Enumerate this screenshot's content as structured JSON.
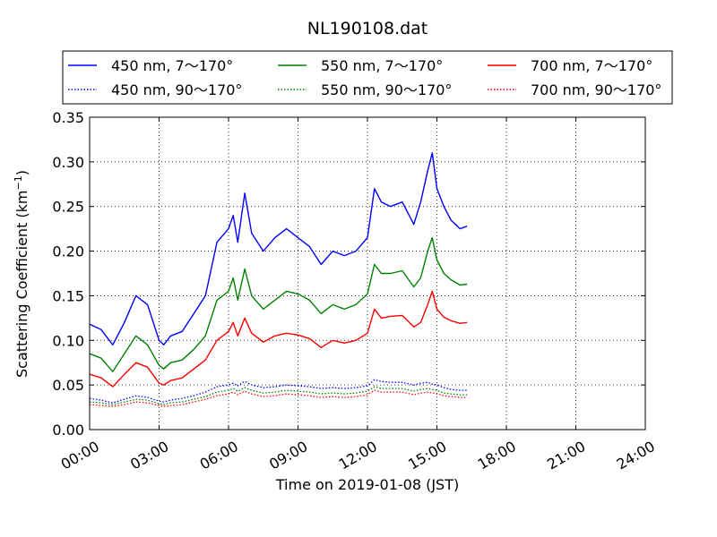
{
  "chart_data": {
    "type": "line",
    "title": "NL190108.dat",
    "xlabel": "Time on 2019-01-08 (JST)",
    "ylabel": "Scattering Coefficient (km",
    "ylabel_sup": "−1",
    "ylabel_end": ")",
    "xlim": [
      0,
      24
    ],
    "ylim": [
      0.0,
      0.35
    ],
    "x_ticks": [
      0,
      3,
      6,
      9,
      12,
      15,
      18,
      21,
      24
    ],
    "x_tick_labels": [
      "00:00",
      "03:00",
      "06:00",
      "09:00",
      "12:00",
      "15:00",
      "18:00",
      "21:00",
      "24:00"
    ],
    "y_ticks": [
      0.0,
      0.05,
      0.1,
      0.15,
      0.2,
      0.25,
      0.3,
      0.35
    ],
    "y_tick_labels": [
      "0.00",
      "0.05",
      "0.10",
      "0.15",
      "0.20",
      "0.25",
      "0.30",
      "0.35"
    ],
    "grid": true,
    "legend_position": "top, above plot, 3 columns",
    "x": [
      0.0,
      0.5,
      1.0,
      1.5,
      2.0,
      2.5,
      3.0,
      3.2,
      3.5,
      4.0,
      4.5,
      5.0,
      5.5,
      6.0,
      6.2,
      6.4,
      6.7,
      7.0,
      7.5,
      8.0,
      8.5,
      9.0,
      9.5,
      10.0,
      10.5,
      11.0,
      11.5,
      12.0,
      12.3,
      12.6,
      13.0,
      13.5,
      14.0,
      14.3,
      14.6,
      14.8,
      15.0,
      15.3,
      15.6,
      16.0,
      16.3
    ],
    "series": [
      {
        "name": "450 nm, 7～170°",
        "color": "#0000ff",
        "style": "solid",
        "values": [
          0.118,
          0.112,
          0.095,
          0.12,
          0.15,
          0.14,
          0.1,
          0.095,
          0.105,
          0.11,
          0.13,
          0.15,
          0.21,
          0.225,
          0.24,
          0.21,
          0.265,
          0.22,
          0.2,
          0.215,
          0.225,
          0.215,
          0.205,
          0.185,
          0.2,
          0.195,
          0.2,
          0.215,
          0.27,
          0.255,
          0.25,
          0.255,
          0.23,
          0.255,
          0.29,
          0.31,
          0.27,
          0.25,
          0.235,
          0.225,
          0.228
        ]
      },
      {
        "name": "550 nm, 7～170°",
        "color": "#008000",
        "style": "solid",
        "values": [
          0.085,
          0.08,
          0.065,
          0.085,
          0.105,
          0.095,
          0.072,
          0.068,
          0.075,
          0.078,
          0.09,
          0.105,
          0.145,
          0.155,
          0.17,
          0.145,
          0.18,
          0.15,
          0.135,
          0.145,
          0.155,
          0.152,
          0.145,
          0.13,
          0.14,
          0.135,
          0.14,
          0.152,
          0.185,
          0.175,
          0.175,
          0.178,
          0.16,
          0.17,
          0.2,
          0.215,
          0.19,
          0.175,
          0.168,
          0.162,
          0.163
        ]
      },
      {
        "name": "700 nm, 7～170°",
        "color": "#ff0000",
        "style": "solid",
        "values": [
          0.062,
          0.058,
          0.048,
          0.062,
          0.075,
          0.07,
          0.052,
          0.05,
          0.055,
          0.058,
          0.068,
          0.078,
          0.1,
          0.11,
          0.12,
          0.105,
          0.125,
          0.108,
          0.098,
          0.105,
          0.108,
          0.106,
          0.102,
          0.092,
          0.1,
          0.097,
          0.1,
          0.108,
          0.135,
          0.125,
          0.127,
          0.128,
          0.115,
          0.12,
          0.14,
          0.155,
          0.135,
          0.126,
          0.122,
          0.119,
          0.12
        ]
      },
      {
        "name": "450 nm, 90～170°",
        "color": "#0000ff",
        "style": "dotted",
        "values": [
          0.035,
          0.033,
          0.03,
          0.034,
          0.038,
          0.036,
          0.032,
          0.031,
          0.033,
          0.035,
          0.038,
          0.042,
          0.048,
          0.05,
          0.052,
          0.049,
          0.054,
          0.05,
          0.047,
          0.048,
          0.05,
          0.049,
          0.048,
          0.046,
          0.047,
          0.046,
          0.047,
          0.049,
          0.056,
          0.054,
          0.053,
          0.053,
          0.05,
          0.052,
          0.053,
          0.051,
          0.05,
          0.047,
          0.045,
          0.044,
          0.044
        ]
      },
      {
        "name": "550 nm, 90～170°",
        "color": "#008000",
        "style": "dotted",
        "values": [
          0.031,
          0.03,
          0.028,
          0.031,
          0.034,
          0.033,
          0.029,
          0.028,
          0.03,
          0.031,
          0.034,
          0.037,
          0.042,
          0.044,
          0.046,
          0.043,
          0.047,
          0.044,
          0.041,
          0.042,
          0.044,
          0.043,
          0.042,
          0.04,
          0.041,
          0.04,
          0.041,
          0.043,
          0.048,
          0.046,
          0.046,
          0.046,
          0.043,
          0.045,
          0.046,
          0.045,
          0.044,
          0.041,
          0.04,
          0.039,
          0.039
        ]
      },
      {
        "name": "700 nm, 90～170°",
        "color": "#ff0000",
        "style": "dotted",
        "values": [
          0.028,
          0.027,
          0.026,
          0.028,
          0.031,
          0.03,
          0.027,
          0.026,
          0.027,
          0.028,
          0.031,
          0.034,
          0.038,
          0.04,
          0.042,
          0.039,
          0.043,
          0.04,
          0.037,
          0.038,
          0.04,
          0.039,
          0.038,
          0.036,
          0.037,
          0.036,
          0.037,
          0.039,
          0.044,
          0.042,
          0.042,
          0.042,
          0.039,
          0.041,
          0.042,
          0.041,
          0.04,
          0.038,
          0.037,
          0.036,
          0.036
        ]
      }
    ]
  }
}
